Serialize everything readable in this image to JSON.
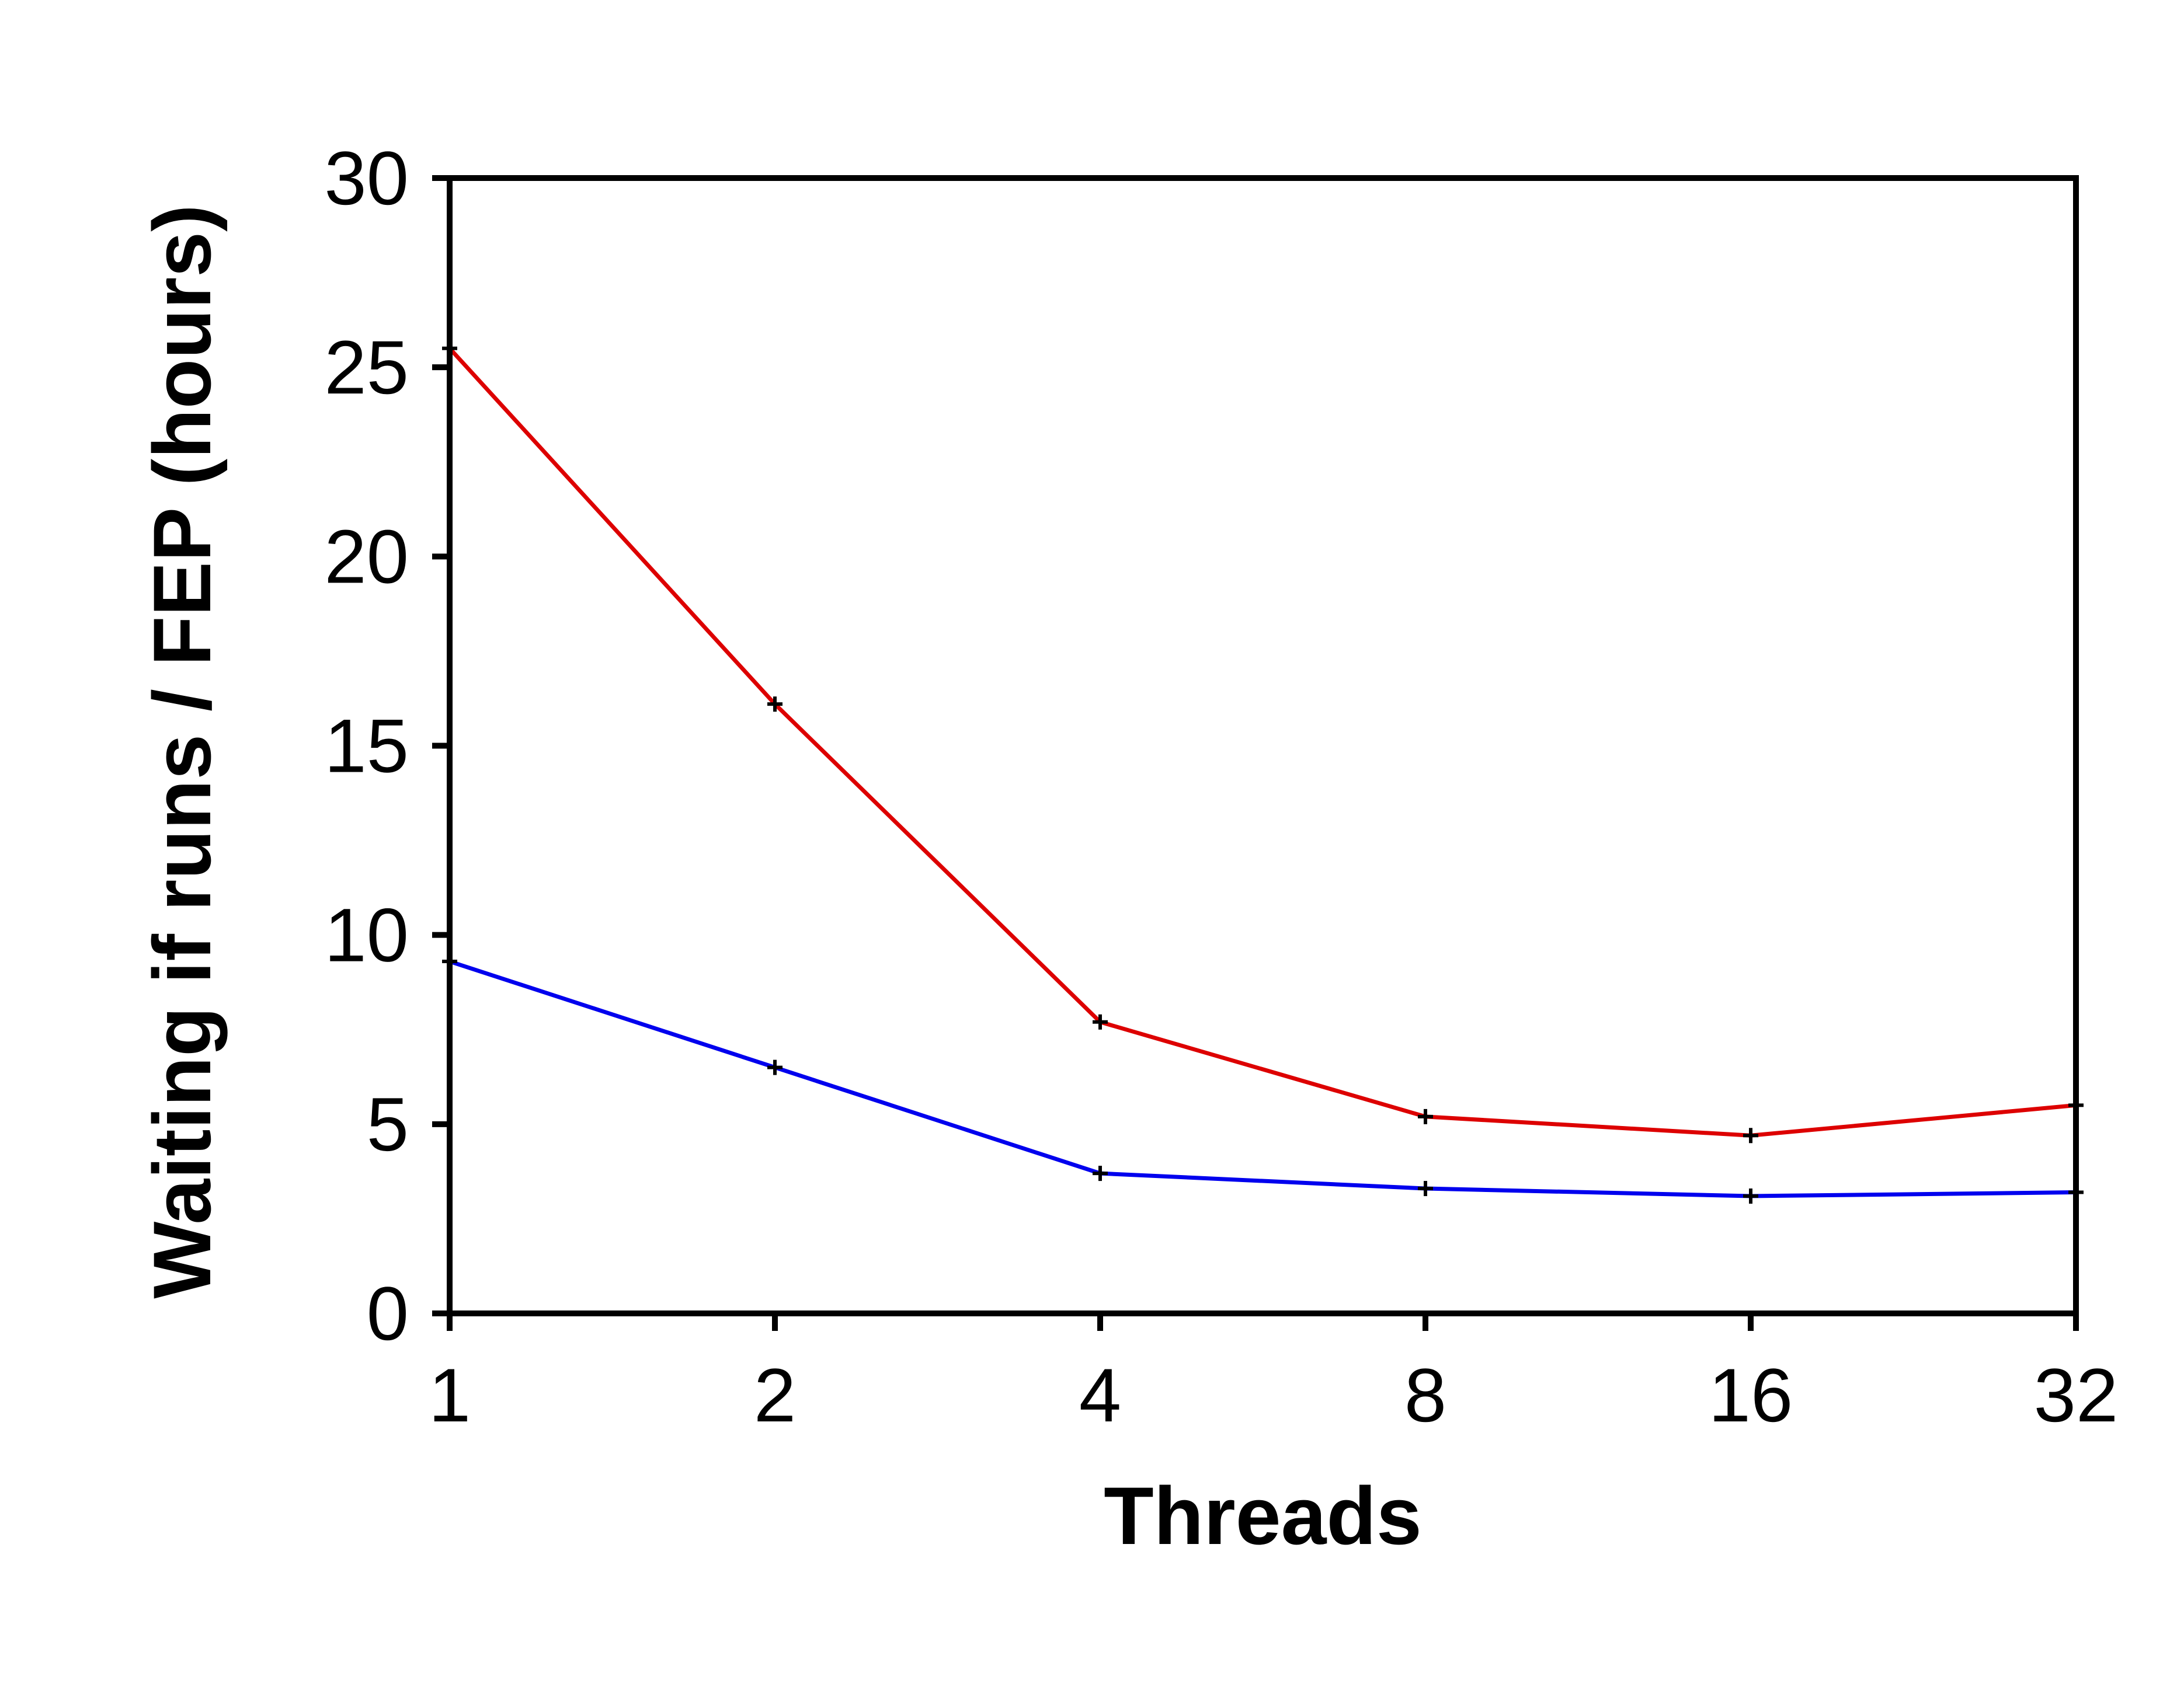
{
  "chart_data": {
    "type": "line",
    "title": "",
    "xlabel": "Threads",
    "ylabel": "Waiting if runs / FEP (hours)",
    "x_scale": "log2",
    "x": [
      1,
      2,
      4,
      8,
      16,
      32
    ],
    "x_tick_labels": [
      "1",
      "2",
      "4",
      "8",
      "16",
      "32"
    ],
    "ylim": [
      0,
      30
    ],
    "y_ticks": [
      0,
      5,
      10,
      15,
      20,
      25,
      30
    ],
    "y_tick_labels": [
      "0",
      "5",
      "10",
      "15",
      "20",
      "25",
      "30"
    ],
    "grid": false,
    "legend": "none",
    "series": [
      {
        "color": "#dd0000",
        "values": [
          25.5,
          16.1,
          7.7,
          5.2,
          4.7,
          5.5
        ]
      },
      {
        "color": "#0000ee",
        "values": [
          9.3,
          6.5,
          3.7,
          3.3,
          3.1,
          3.2
        ]
      }
    ]
  }
}
